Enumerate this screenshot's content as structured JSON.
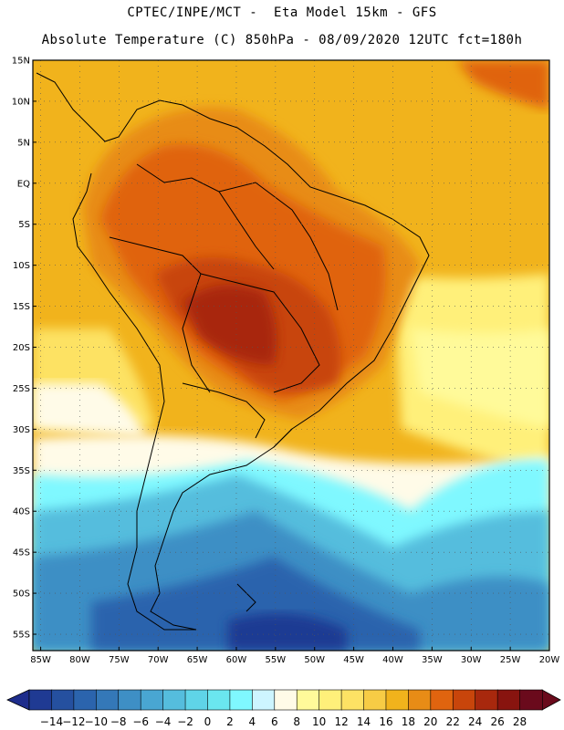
{
  "header": {
    "title_line1": "CPTEC/INPE/MCT -  Eta Model 15km - GFS",
    "title_line2": "Absolute Temperature (C) 850hPa - 08/09/2020 12UTC fct=180h"
  },
  "map": {
    "lat_labels": [
      "15N",
      "10N",
      "5N",
      "EQ",
      "5S",
      "10S",
      "15S",
      "20S",
      "25S",
      "30S",
      "35S",
      "40S",
      "45S",
      "50S",
      "55S"
    ],
    "lon_labels": [
      "85W",
      "80W",
      "75W",
      "70W",
      "65W",
      "60W",
      "55W",
      "50W",
      "45W",
      "40W",
      "35W",
      "30W",
      "25W",
      "20W"
    ],
    "lat_range": [
      15,
      -57
    ],
    "lon_range": [
      -86,
      -20
    ]
  },
  "colorbar": {
    "labels": [
      "-14",
      "-12",
      "-10",
      "-8",
      "-6",
      "-4",
      "-2",
      "0",
      "2",
      "4",
      "6",
      "8",
      "10",
      "12",
      "14",
      "16",
      "18",
      "20",
      "22",
      "24",
      "26",
      "28"
    ],
    "under_color": "#1e2d8c",
    "over_color": "#6a0a1c",
    "colors": [
      "#1f3a93",
      "#25509f",
      "#2b64ad",
      "#3478b8",
      "#3e8fc5",
      "#49a6d2",
      "#55bddd",
      "#5fd4e8",
      "#6ae6ef",
      "#7ff8ff",
      "#cdf5ff",
      "#fffbe8",
      "#fffa9a",
      "#fff07a",
      "#fde264",
      "#f7cc45",
      "#f1b31c",
      "#e88c16",
      "#e0640f",
      "#c8450b",
      "#a8280d",
      "#88140f",
      "#6a0a1c"
    ]
  }
}
